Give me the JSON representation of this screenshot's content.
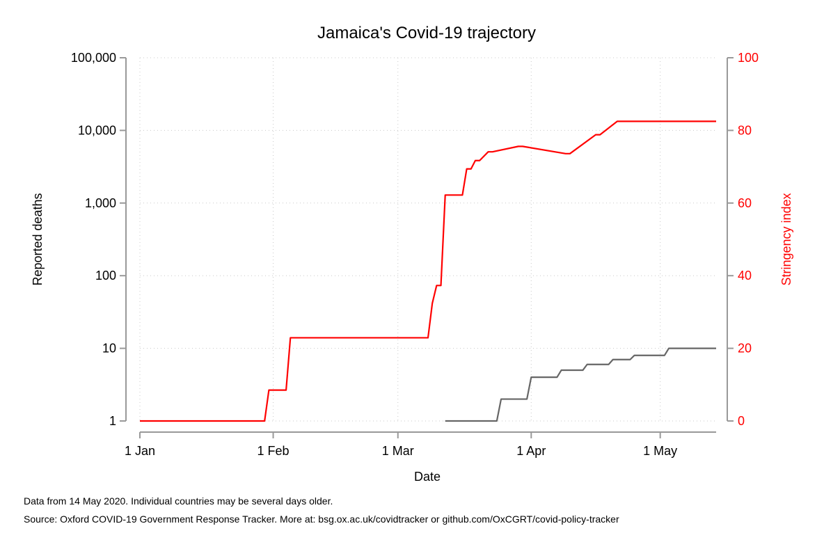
{
  "chart_data": {
    "type": "line",
    "title": "Jamaica's Covid-19 trajectory",
    "xlabel": "Date",
    "ylabel_left": "Reported deaths",
    "ylabel_right": "Stringency index",
    "x_ticks": [
      "1 Jan",
      "1 Feb",
      "1 Mar",
      "1 Apr",
      "1 May"
    ],
    "x_tick_days": [
      0,
      31,
      60,
      91,
      121
    ],
    "xlim_days": [
      0,
      134
    ],
    "y_left_scale": "log",
    "y_left_ticks": [
      1,
      10,
      100,
      1000,
      10000,
      100000
    ],
    "y_left_tick_labels": [
      "1",
      "10",
      "100",
      "1,000",
      "10,000",
      "100,000"
    ],
    "y_right_ticks": [
      0,
      20,
      40,
      60,
      80,
      100
    ],
    "y_right_tick_labels": [
      "0",
      "20",
      "40",
      "60",
      "80",
      "100"
    ],
    "ylim_right": [
      0,
      100
    ],
    "grid": true,
    "colors": {
      "deaths": "#666666",
      "stringency": "#ff0000",
      "axis": "#999999"
    },
    "series": [
      {
        "name": "",
        "axis": "left",
        "color": "#666666",
        "x": [
          "2020-03-12",
          "2020-03-24",
          "2020-03-25",
          "2020-03-31",
          "2020-04-01",
          "2020-04-07",
          "2020-04-08",
          "2020-04-13",
          "2020-04-14",
          "2020-04-19",
          "2020-04-20",
          "2020-04-24",
          "2020-04-25",
          "2020-05-02",
          "2020-05-03",
          "2020-05-14"
        ],
        "values": [
          1,
          1,
          2,
          2,
          4,
          4,
          5,
          5,
          6,
          6,
          7,
          7,
          8,
          8,
          10,
          10
        ]
      },
      {
        "name": "",
        "axis": "right",
        "color": "#ff0000",
        "x": [
          "2020-01-01",
          "2020-01-30",
          "2020-01-31",
          "2020-02-04",
          "2020-02-05",
          "2020-03-08",
          "2020-03-09",
          "2020-03-10",
          "2020-03-11",
          "2020-03-12",
          "2020-03-16",
          "2020-03-17",
          "2020-03-18",
          "2020-03-19",
          "2020-03-20",
          "2020-03-22",
          "2020-03-23",
          "2020-03-29",
          "2020-03-30",
          "2020-04-09",
          "2020-04-10",
          "2020-04-16",
          "2020-04-17",
          "2020-04-21",
          "2020-04-22",
          "2020-05-14"
        ],
        "values": [
          0,
          0,
          8.5,
          8.5,
          22.9,
          22.9,
          32.4,
          37.3,
          37.3,
          62.2,
          62.2,
          69.4,
          69.4,
          71.7,
          71.7,
          74.1,
          74.1,
          75.6,
          75.6,
          73.6,
          73.6,
          78.8,
          78.8,
          82.5,
          82.5,
          82.5
        ]
      }
    ]
  },
  "notes": {
    "line1": "Data from 14 May 2020. Individual countries may be several days older.",
    "line2": "Source: Oxford COVID-19 Government Response Tracker. More at: bsg.ox.ac.uk/covidtracker or github.com/OxCGRT/covid-policy-tracker"
  }
}
